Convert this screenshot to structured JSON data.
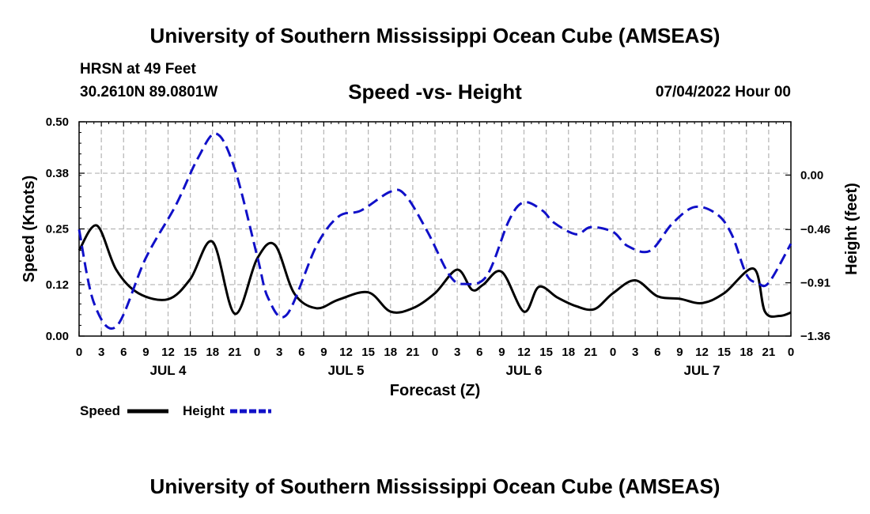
{
  "header": {
    "title": "University of Southern Mississippi Ocean Cube (AMSEAS)",
    "station_name": "HRSN at 49 Feet",
    "coordinates": "30.2610N  89.0801W",
    "subtitle": "Speed -vs- Height",
    "date": "07/04/2022 Hour 00"
  },
  "footer": {
    "title": "University of Southern Mississippi Ocean Cube (AMSEAS)"
  },
  "chart_data": {
    "type": "line",
    "title": "Speed -vs- Height",
    "xlabel": "Forecast (Z)",
    "ylabel_left": "Speed (Knots)",
    "ylabel_right": "Height (feet)",
    "x_unit": "forecast hour",
    "xlim": [
      0,
      96
    ],
    "x_tick_step": 3,
    "x_tick_labels": [
      "0",
      "3",
      "6",
      "9",
      "12",
      "15",
      "18",
      "21",
      "0",
      "3",
      "6",
      "9",
      "12",
      "15",
      "18",
      "21",
      "0",
      "3",
      "6",
      "9",
      "12",
      "15",
      "18",
      "21",
      "0",
      "3",
      "6",
      "9",
      "12",
      "15",
      "18",
      "21",
      "0"
    ],
    "day_labels": [
      {
        "label": "JUL 4",
        "x": 12
      },
      {
        "label": "JUL 5",
        "x": 36
      },
      {
        "label": "JUL 6",
        "x": 60
      },
      {
        "label": "JUL 7",
        "x": 84
      }
    ],
    "ylim_left": [
      0,
      0.5
    ],
    "y_ticks_left": [
      0.0,
      0.12,
      0.25,
      0.38,
      0.5
    ],
    "y_tick_labels_left": [
      "0.00",
      "0.12",
      "0.25",
      "0.38",
      "0.50"
    ],
    "ylim_right": [
      -1.36,
      0.45
    ],
    "y_ticks_right": [
      -1.36,
      -0.91,
      -0.46,
      0.0
    ],
    "y_tick_labels_right": [
      "−1.36",
      "−0.91",
      "−0.46",
      "0.00"
    ],
    "grid": true,
    "series": [
      {
        "name": "Speed",
        "axis": "left",
        "color": "#000000",
        "dash": "solid",
        "x": [
          0,
          2.4,
          5,
          8,
          12,
          15,
          18,
          21,
          24,
          26.4,
          29,
          32,
          35,
          39,
          42,
          45,
          48,
          51,
          53,
          54.5,
          57,
          60,
          62,
          64.5,
          67,
          69.5,
          72,
          75,
          78,
          81,
          84,
          87,
          91,
          92.5,
          94.5,
          96
        ],
        "values": [
          0.2,
          0.258,
          0.155,
          0.1,
          0.086,
          0.133,
          0.22,
          0.052,
          0.18,
          0.213,
          0.1,
          0.065,
          0.085,
          0.102,
          0.057,
          0.065,
          0.1,
          0.155,
          0.108,
          0.12,
          0.15,
          0.057,
          0.115,
          0.09,
          0.07,
          0.063,
          0.1,
          0.13,
          0.093,
          0.087,
          0.077,
          0.1,
          0.157,
          0.057,
          0.047,
          0.055
        ]
      },
      {
        "name": "Height",
        "axis": "right",
        "color": "#1010c8",
        "dash": "dashed",
        "x": [
          0,
          2,
          5,
          9,
          13,
          16,
          18.5,
          21,
          24,
          25.5,
          28,
          32,
          35,
          38,
          42,
          44,
          47,
          50,
          52,
          55,
          58,
          60,
          62.5,
          64,
          67,
          69,
          72,
          74,
          77,
          80,
          83,
          86,
          88,
          90,
          91.5,
          93,
          96
        ],
        "values": [
          -0.46,
          -1.08,
          -1.28,
          -0.7,
          -0.26,
          0.14,
          0.35,
          0.05,
          -0.68,
          -1.04,
          -1.18,
          -0.6,
          -0.35,
          -0.3,
          -0.14,
          -0.17,
          -0.48,
          -0.85,
          -0.92,
          -0.85,
          -0.38,
          -0.23,
          -0.3,
          -0.4,
          -0.5,
          -0.44,
          -0.48,
          -0.6,
          -0.64,
          -0.41,
          -0.27,
          -0.33,
          -0.5,
          -0.84,
          -0.91,
          -0.91,
          -0.58
        ]
      }
    ],
    "legend": [
      {
        "label": "Speed",
        "color": "#000000",
        "dash": "solid"
      },
      {
        "label": "Height",
        "color": "#1010c8",
        "dash": "dashed"
      }
    ],
    "legend_position": "bottom-left"
  }
}
